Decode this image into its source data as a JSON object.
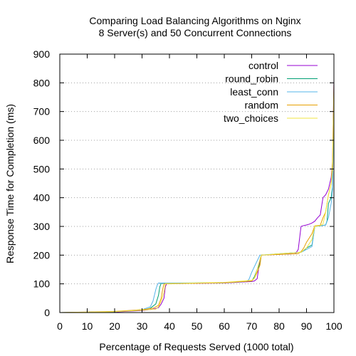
{
  "chart_data": {
    "type": "line",
    "title": "Comparing Load Balancing Algorithms on Nginx",
    "subtitle": "8 Server(s) and 50 Concurrent Connections",
    "xlabel": "Percentage of Requests Served (1000 total)",
    "ylabel": "Response Time for Completion (ms)",
    "xlim": [
      0,
      100
    ],
    "ylim": [
      0,
      900
    ],
    "xticks": [
      "0",
      "10",
      "20",
      "30",
      "40",
      "50",
      "60",
      "70",
      "80",
      "90",
      "100"
    ],
    "yticks": [
      "0",
      "100",
      "200",
      "300",
      "400",
      "500",
      "600",
      "700",
      "800",
      "900"
    ],
    "grid": "horizontal dotted",
    "legend_position": "top-right",
    "series": [
      {
        "name": "control",
        "color": "#9400d3",
        "x": [
          0,
          20,
          30,
          34,
          36,
          37,
          38,
          38.5,
          39,
          60,
          70,
          71,
          72,
          73,
          73.5,
          86,
          87,
          88,
          89,
          90,
          91,
          92,
          93,
          94,
          95,
          96,
          97,
          98,
          99,
          99.5,
          100
        ],
        "y": [
          0,
          2,
          7,
          12,
          17,
          30,
          50,
          90,
          101,
          103,
          108,
          110,
          118,
          185,
          200,
          205,
          220,
          300,
          303,
          305,
          308,
          312,
          318,
          330,
          340,
          400,
          410,
          430,
          470,
          520,
          810
        ]
      },
      {
        "name": "round_robin",
        "color": "#009e73",
        "x": [
          0,
          20,
          30,
          33,
          35,
          36,
          36.5,
          37,
          60,
          70,
          71,
          72,
          73,
          73.5,
          88,
          89,
          90,
          91,
          92,
          93,
          95,
          97,
          97.5,
          98,
          99,
          99.5,
          100
        ],
        "y": [
          0,
          3,
          8,
          15,
          30,
          60,
          90,
          102,
          104,
          110,
          125,
          150,
          170,
          200,
          210,
          215,
          225,
          230,
          235,
          300,
          302,
          305,
          320,
          380,
          400,
          440,
          780
        ]
      },
      {
        "name": "least_conn",
        "color": "#56b4e9",
        "x": [
          0,
          20,
          30,
          33,
          34,
          35,
          35.5,
          36,
          60,
          68,
          69,
          70,
          71,
          72,
          73,
          88,
          89,
          90,
          91,
          92,
          93,
          95,
          97,
          98,
          99,
          99.5,
          100
        ],
        "y": [
          0,
          3,
          10,
          20,
          40,
          80,
          95,
          103,
          104,
          108,
          115,
          140,
          160,
          180,
          200,
          210,
          215,
          220,
          225,
          230,
          300,
          302,
          305,
          330,
          380,
          430,
          760
        ]
      },
      {
        "name": "random",
        "color": "#e69f00",
        "x": [
          0,
          20,
          30,
          34,
          36,
          37,
          37.5,
          38,
          60,
          70,
          71,
          72,
          73,
          73.5,
          87,
          88,
          89,
          90,
          91,
          92,
          93,
          95,
          96,
          97,
          98,
          99,
          99.5,
          100
        ],
        "y": [
          0,
          4,
          10,
          15,
          25,
          50,
          80,
          100,
          104,
          110,
          120,
          140,
          165,
          200,
          205,
          212,
          225,
          245,
          260,
          275,
          302,
          304,
          330,
          350,
          410,
          450,
          530,
          800
        ]
      },
      {
        "name": "two_choices",
        "color": "#f0e442",
        "x": [
          0,
          20,
          30,
          35,
          36,
          37,
          38,
          38.5,
          60,
          70,
          71,
          72,
          73,
          73.5,
          88,
          89,
          90,
          91,
          92,
          93,
          95,
          96,
          97,
          98,
          99,
          99.5,
          100
        ],
        "y": [
          0,
          3,
          8,
          12,
          20,
          40,
          70,
          101,
          105,
          112,
          120,
          150,
          185,
          200,
          210,
          218,
          225,
          240,
          255,
          300,
          303,
          308,
          350,
          410,
          450,
          500,
          770
        ]
      }
    ]
  }
}
